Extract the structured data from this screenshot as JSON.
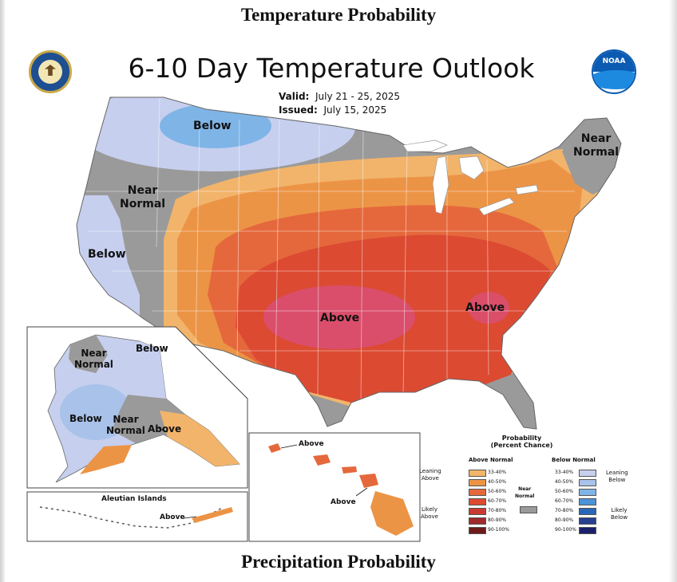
{
  "headings": {
    "top": "Temperature Probability",
    "bottom": "Precipitation Probability"
  },
  "title": "6-10 Day Temperature Outlook",
  "valid": {
    "label": "Valid:",
    "value": "July 21 - 25, 2025"
  },
  "issued": {
    "label": "Issued:",
    "value": "July 15, 2025"
  },
  "logos": {
    "left": "department-of-commerce-seal",
    "right_text": "NOAA"
  },
  "map_labels": {
    "below_north": "Below",
    "near_normal_west": "Near\nNormal",
    "below_west": "Below",
    "near_normal_ne": "Near\nNormal",
    "above_central": "Above",
    "above_se": "Above"
  },
  "alaska_labels": {
    "near_normal_n": "Near\nNormal",
    "below_ne": "Below",
    "below_w": "Below",
    "near_normal_s": "Near\nNormal",
    "above": "Above"
  },
  "aleutian": {
    "title": "Aleutian Islands",
    "above": "Above"
  },
  "hawaii": {
    "above_1": "Above",
    "above_2": "Above"
  },
  "legend": {
    "title_1": "Probability",
    "title_2": "(Percent Chance)",
    "above_normal": "Above Normal",
    "below_normal": "Below Normal",
    "near_normal": "Near\nNormal",
    "leaning_above": "Leaning\nAbove",
    "likely_above": "Likely\nAbove",
    "leaning_below": "Leaning\nBelow",
    "likely_below": "Likely\nBelow",
    "ranges": [
      "33-40%",
      "40-50%",
      "50-60%",
      "60-70%",
      "70-80%",
      "80-90%",
      "90-100%"
    ],
    "above_colors": [
      "#f2b46b",
      "#ec9446",
      "#e5683c",
      "#dc4a32",
      "#c93b32",
      "#a02a2a",
      "#6e1a1a"
    ],
    "below_colors": [
      "#c6cfee",
      "#a9c2ea",
      "#7fb4e6",
      "#4a93d8",
      "#2a66b8",
      "#27408f",
      "#1c1f6b"
    ],
    "near_color": "#9a9a9a"
  }
}
